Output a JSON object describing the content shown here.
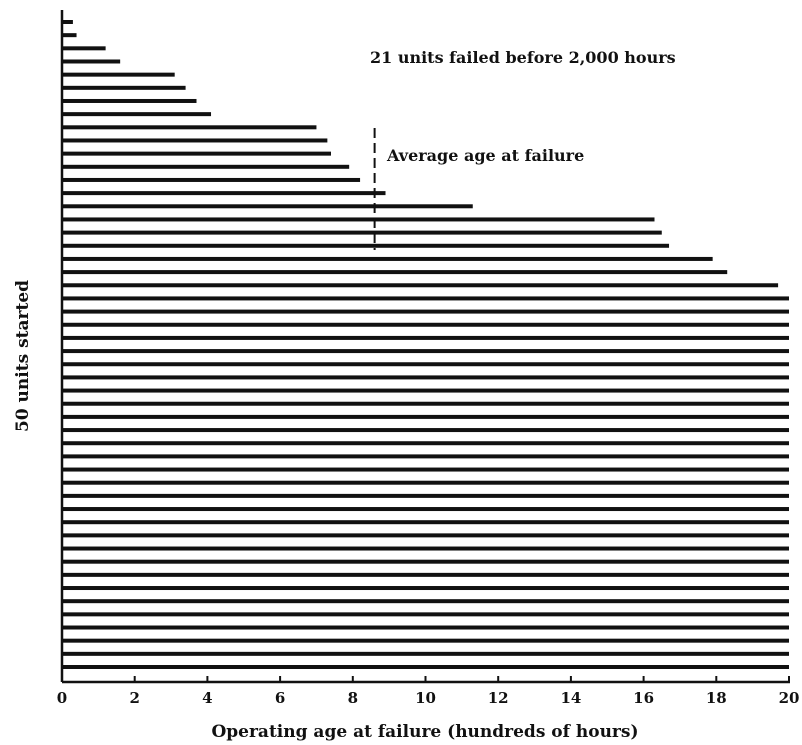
{
  "chart_data": {
    "type": "bar",
    "orientation": "horizontal",
    "xlabel": "Operating age at failure (hundreds of hours)",
    "ylabel": "50 units started",
    "xlim": [
      0,
      20
    ],
    "xticks": [
      "0",
      "2",
      "4",
      "6",
      "8",
      "10",
      "12",
      "14",
      "16",
      "18",
      "20"
    ],
    "grid": false,
    "values": [
      0.3,
      0.4,
      1.2,
      1.6,
      3.1,
      3.4,
      3.7,
      4.1,
      7.0,
      7.3,
      7.4,
      7.9,
      8.2,
      8.9,
      11.3,
      16.3,
      16.5,
      16.7,
      17.9,
      18.3,
      19.7,
      20,
      20,
      20,
      20,
      20,
      20,
      20,
      20,
      20,
      20,
      20,
      20,
      20,
      20,
      20,
      20,
      20,
      20,
      20,
      20,
      20,
      20,
      20,
      20,
      20,
      20,
      20,
      20,
      20
    ],
    "reference_line": {
      "x": 8.6,
      "label": "Average age at failure",
      "style": "dashed"
    },
    "annotations": [
      "21 units failed before 2,000 hours"
    ],
    "colors": {
      "bar": "#111111",
      "axis": "#111111",
      "text": "#111111"
    }
  }
}
